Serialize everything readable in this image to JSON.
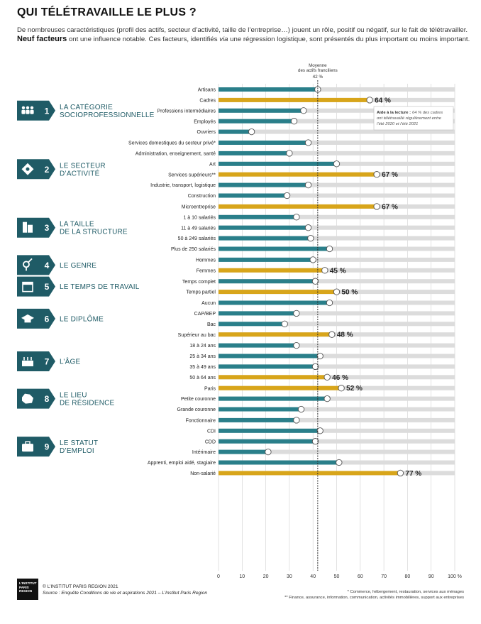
{
  "header": {
    "title": "QUI TÉLÉTRAVAILLE LE PLUS ?",
    "intro_line1": "De nombreuses caractéristiques (profil des actifs, secteur d’activité, taille de l’entreprise…) jouent un rôle, positif ou négatif, sur le fait de télétravailler.",
    "intro_bold": "Neuf facteurs",
    "intro_line2_a": " ont une influence notable. Ces facteurs, identifiés ",
    "intro_via": "via",
    "intro_line2_b": " une régression logistique, sont présentés du plus important ou moins important."
  },
  "reference": {
    "label_line1": "Moyenne",
    "label_line2": "des actifs franciliens",
    "value_label": "42 %"
  },
  "reading_aid": {
    "title": "Aide à la lecture :",
    "text_line1": "64 % des cadres",
    "text_line2": "ont télétravaillé régulièrement entre",
    "text_line3": "l’été 2020 et l’été 2021"
  },
  "colors": {
    "teal": "#2a7f8a",
    "gold": "#d8a51a",
    "track": "#dcdcdc",
    "badge": "#1f5b66"
  },
  "chart_data": {
    "type": "bar",
    "unit": "%",
    "xlim": [
      0,
      100
    ],
    "xticks": [
      "0",
      "10",
      "20",
      "30",
      "40",
      "50",
      "60",
      "70",
      "80",
      "90",
      "100 %"
    ],
    "reference_value": 42,
    "groups": [
      {
        "num": "1",
        "icon": "people-icon",
        "label": [
          "LA CATÉGORIE",
          "SOCIOPROFESSIONNELLE"
        ],
        "items": [
          {
            "label": "Artisans",
            "value": 42,
            "highlight": false
          },
          {
            "label": "Cadres",
            "value": 64,
            "highlight": true,
            "value_label": "64 %"
          },
          {
            "label": "Professions intermédiaires",
            "value": 36,
            "highlight": false
          },
          {
            "label": "Employés",
            "value": 32,
            "highlight": false
          },
          {
            "label": "Ouvriers",
            "value": 14,
            "highlight": false
          }
        ]
      },
      {
        "num": "2",
        "icon": "sector-icon",
        "label": [
          "LE SECTEUR",
          "D’ACTIVITÉ"
        ],
        "items": [
          {
            "label": "Services domestiques du secteur privé*",
            "value": 38,
            "highlight": false
          },
          {
            "label": "Administration, enseignement, santé",
            "value": 30,
            "highlight": false
          },
          {
            "label": "Art",
            "value": 50,
            "highlight": false
          },
          {
            "label": "Services supérieurs**",
            "value": 67,
            "highlight": true,
            "value_label": "67 %"
          },
          {
            "label": "Industrie, transport, logistique",
            "value": 38,
            "highlight": false
          },
          {
            "label": "Construction",
            "value": 29,
            "highlight": false
          }
        ]
      },
      {
        "num": "3",
        "icon": "buildings-icon",
        "label": [
          "LA TAILLE",
          "DE LA STRUCTURE"
        ],
        "items": [
          {
            "label": "Microentreprise",
            "value": 67,
            "highlight": true,
            "value_label": "67 %"
          },
          {
            "label": "1 à 10 salariés",
            "value": 33,
            "highlight": false
          },
          {
            "label": "11 à 49 salariés",
            "value": 38,
            "highlight": false
          },
          {
            "label": "50 à 249 salariés",
            "value": 39,
            "highlight": false
          },
          {
            "label": "Plus de 250 salariés",
            "value": 47,
            "highlight": false
          }
        ]
      },
      {
        "num": "4",
        "icon": "gender-icon",
        "label": [
          "LE GENRE"
        ],
        "items": [
          {
            "label": "Hommes",
            "value": 40,
            "highlight": false
          },
          {
            "label": "Femmes",
            "value": 45,
            "highlight": true,
            "value_label": "45 %"
          }
        ]
      },
      {
        "num": "5",
        "icon": "calendar-icon",
        "label": [
          "LE TEMPS DE TRAVAIL"
        ],
        "items": [
          {
            "label": "Temps complet",
            "value": 41,
            "highlight": false
          },
          {
            "label": "Temps partiel",
            "value": 50,
            "highlight": true,
            "value_label": "50 %"
          }
        ]
      },
      {
        "num": "6",
        "icon": "graduation-cap-icon",
        "label": [
          "LE DIPLÔME"
        ],
        "items": [
          {
            "label": "Aucun",
            "value": 47,
            "highlight": false
          },
          {
            "label": "CAP/BEP",
            "value": 33,
            "highlight": false
          },
          {
            "label": "Bac",
            "value": 28,
            "highlight": false
          },
          {
            "label": "Supérieur au bac",
            "value": 48,
            "highlight": true,
            "value_label": "48 %"
          }
        ]
      },
      {
        "num": "7",
        "icon": "cake-icon",
        "label": [
          "L’ÂGE"
        ],
        "items": [
          {
            "label": "18 à 24 ans",
            "value": 33,
            "highlight": false
          },
          {
            "label": "25 à 34 ans",
            "value": 43,
            "highlight": false
          },
          {
            "label": "35 à 49 ans",
            "value": 41,
            "highlight": false
          },
          {
            "label": "50 à 64 ans",
            "value": 46,
            "highlight": true,
            "value_label": "46 %"
          }
        ]
      },
      {
        "num": "8",
        "icon": "map-region-icon",
        "label": [
          "LE LIEU",
          "DE RÉSIDENCE"
        ],
        "items": [
          {
            "label": "Paris",
            "value": 52,
            "highlight": true,
            "value_label": "52 %"
          },
          {
            "label": "Petite couronne",
            "value": 46,
            "highlight": false
          },
          {
            "label": "Grande couronne",
            "value": 35,
            "highlight": false
          }
        ]
      },
      {
        "num": "9",
        "icon": "briefcase-icon",
        "label": [
          "LE STATUT",
          "D’EMPLOI"
        ],
        "items": [
          {
            "label": "Fonctionnaire",
            "value": 33,
            "highlight": false
          },
          {
            "label": "CDI",
            "value": 43,
            "highlight": false
          },
          {
            "label": "CDD",
            "value": 41,
            "highlight": false
          },
          {
            "label": "Intérimaire",
            "value": 21,
            "highlight": false
          },
          {
            "label": "Apprenti, emploi aidé, stagiaire",
            "value": 51,
            "highlight": false
          },
          {
            "label": "Non-salarié",
            "value": 77,
            "highlight": true,
            "value_label": "77 %"
          }
        ]
      }
    ]
  },
  "footer": {
    "logo_line1": "L’INSTITUT",
    "logo_line2": "PARIS",
    "logo_line3": "REGION",
    "copyright": "© L’INSTITUT PARIS REGION 2021",
    "source": "Source : Enquête Conditions de vie et aspirations 2021 – L’Institut Paris Region",
    "note1": "* Commerce, hébergement, restauration, services aux ménages",
    "note2": "** Finance, assurance, information, communication, activités immobilières, support aux entreprises"
  }
}
